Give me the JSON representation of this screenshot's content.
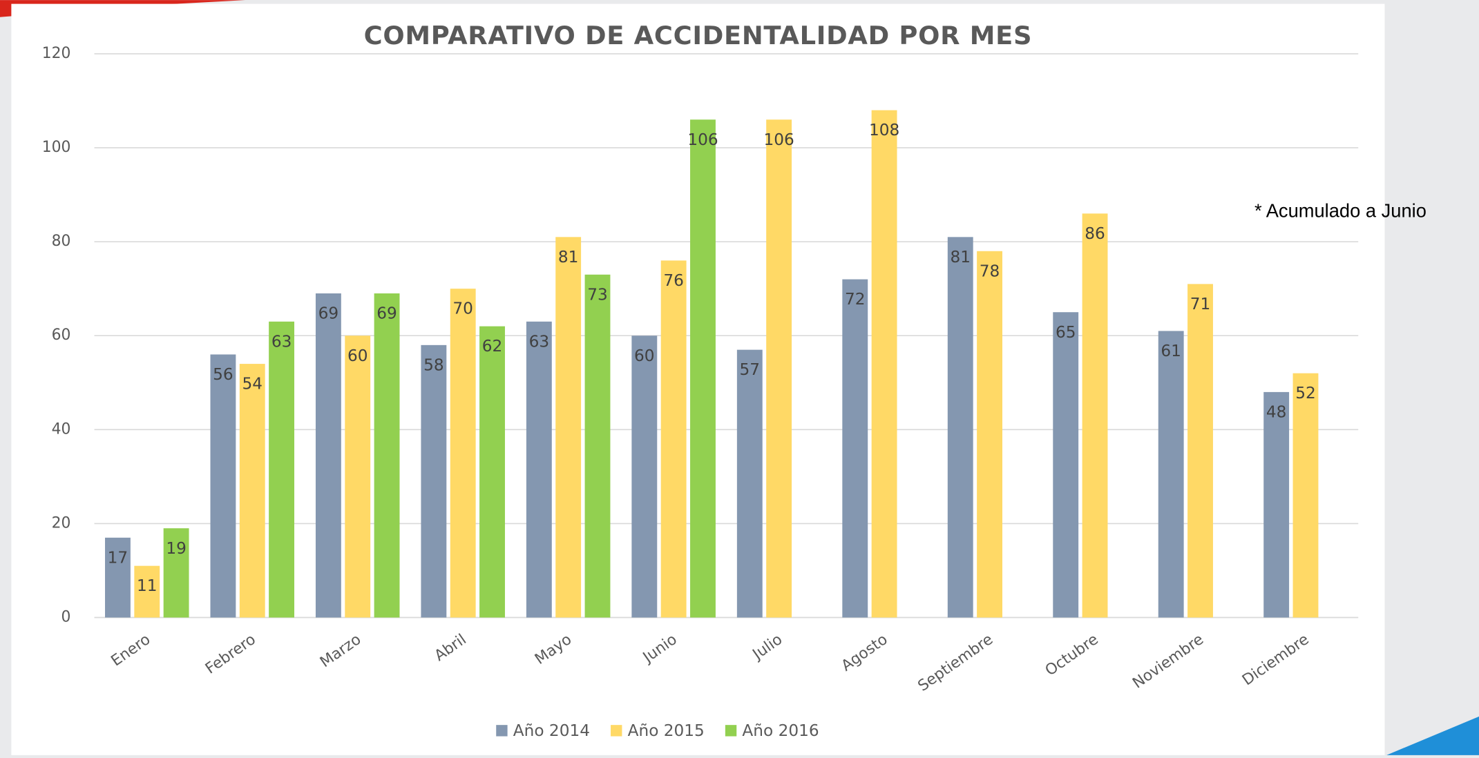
{
  "chart_data": {
    "type": "bar",
    "title": "COMPARATIVO DE ACCIDENTALIDAD POR MES",
    "annotation": "* Acumulado a Junio",
    "categories": [
      "Enero",
      "Febrero",
      "Marzo",
      "Abril",
      "Mayo",
      "Junio",
      "Julio",
      "Agosto",
      "Septiembre",
      "Octubre",
      "Noviembre",
      "Diciembre"
    ],
    "series": [
      {
        "name": "Año 2014",
        "color": "#8497b0",
        "values": [
          17,
          56,
          69,
          58,
          63,
          60,
          57,
          72,
          81,
          65,
          61,
          48
        ]
      },
      {
        "name": "Año 2015",
        "color": "#ffd966",
        "values": [
          11,
          54,
          60,
          70,
          81,
          76,
          106,
          108,
          78,
          86,
          71,
          52
        ]
      },
      {
        "name": "Año 2016",
        "color": "#92d050",
        "values": [
          19,
          63,
          69,
          62,
          73,
          106,
          null,
          null,
          null,
          null,
          null,
          null
        ]
      }
    ],
    "ylim": [
      0,
      120
    ],
    "yticks": [
      0,
      20,
      40,
      60,
      80,
      100,
      120
    ],
    "grid": true,
    "legend": "bottom"
  }
}
